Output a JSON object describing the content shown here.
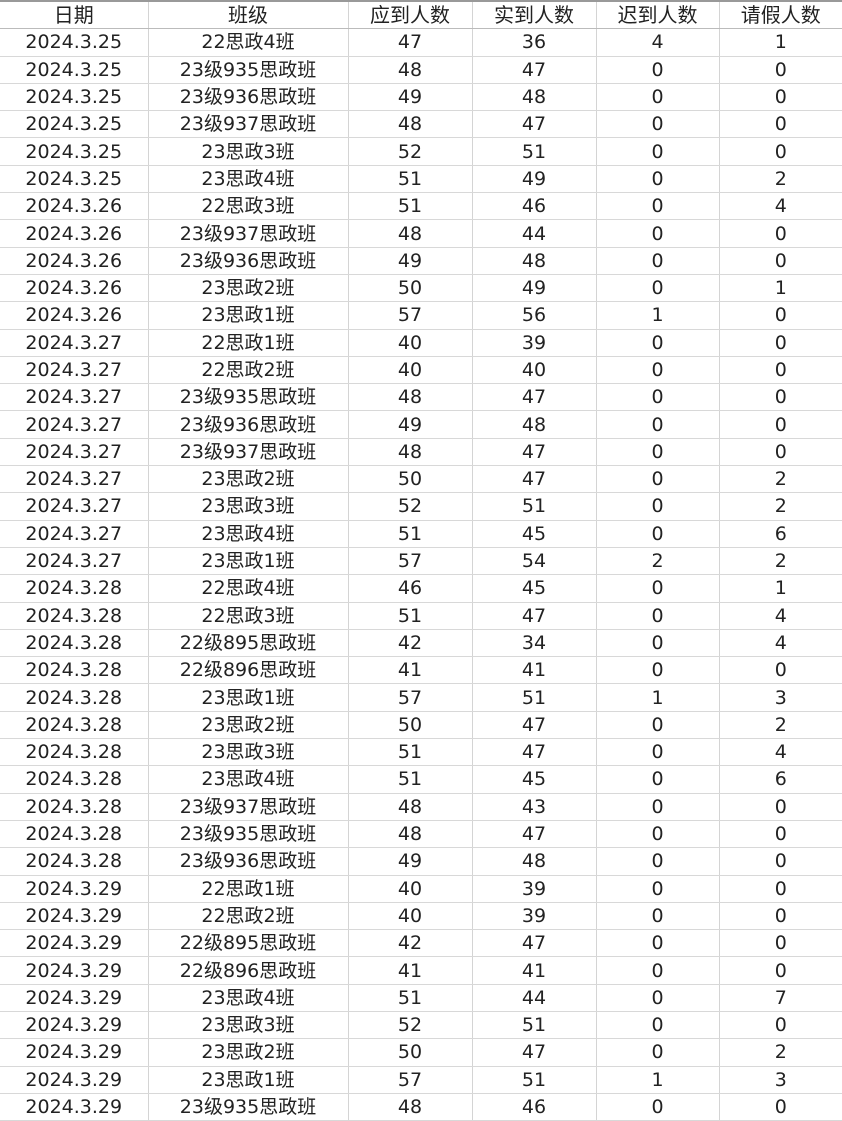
{
  "table": {
    "headers": [
      "日期",
      "班级",
      "应到人数",
      "实到人数",
      "迟到人数",
      "请假人数"
    ],
    "rows": [
      [
        "2024.3.25",
        "22思政4班",
        "47",
        "36",
        "4",
        "1"
      ],
      [
        "2024.3.25",
        "23级935思政班",
        "48",
        "47",
        "0",
        "0"
      ],
      [
        "2024.3.25",
        "23级936思政班",
        "49",
        "48",
        "0",
        "0"
      ],
      [
        "2024.3.25",
        "23级937思政班",
        "48",
        "47",
        "0",
        "0"
      ],
      [
        "2024.3.25",
        "23思政3班",
        "52",
        "51",
        "0",
        "0"
      ],
      [
        "2024.3.25",
        "23思政4班",
        "51",
        "49",
        "0",
        "2"
      ],
      [
        "2024.3.26",
        "22思政3班",
        "51",
        "46",
        "0",
        "4"
      ],
      [
        "2024.3.26",
        "23级937思政班",
        "48",
        "44",
        "0",
        "0"
      ],
      [
        "2024.3.26",
        "23级936思政班",
        "49",
        "48",
        "0",
        "0"
      ],
      [
        "2024.3.26",
        "23思政2班",
        "50",
        "49",
        "0",
        "1"
      ],
      [
        "2024.3.26",
        "23思政1班",
        "57",
        "56",
        "1",
        "0"
      ],
      [
        "2024.3.27",
        "22思政1班",
        "40",
        "39",
        "0",
        "0"
      ],
      [
        "2024.3.27",
        "22思政2班",
        "40",
        "40",
        "0",
        "0"
      ],
      [
        "2024.3.27",
        "23级935思政班",
        "48",
        "47",
        "0",
        "0"
      ],
      [
        "2024.3.27",
        "23级936思政班",
        "49",
        "48",
        "0",
        "0"
      ],
      [
        "2024.3.27",
        "23级937思政班",
        "48",
        "47",
        "0",
        "0"
      ],
      [
        "2024.3.27",
        "23思政2班",
        "50",
        "47",
        "0",
        "2"
      ],
      [
        "2024.3.27",
        "23思政3班",
        "52",
        "51",
        "0",
        "2"
      ],
      [
        "2024.3.27",
        "23思政4班",
        "51",
        "45",
        "0",
        "6"
      ],
      [
        "2024.3.27",
        "23思政1班",
        "57",
        "54",
        "2",
        "2"
      ],
      [
        "2024.3.28",
        "22思政4班",
        "46",
        "45",
        "0",
        "1"
      ],
      [
        "2024.3.28",
        "22思政3班",
        "51",
        "47",
        "0",
        "4"
      ],
      [
        "2024.3.28",
        "22级895思政班",
        "42",
        "34",
        "0",
        "4"
      ],
      [
        "2024.3.28",
        "22级896思政班",
        "41",
        "41",
        "0",
        "0"
      ],
      [
        "2024.3.28",
        "23思政1班",
        "57",
        "51",
        "1",
        "3"
      ],
      [
        "2024.3.28",
        "23思政2班",
        "50",
        "47",
        "0",
        "2"
      ],
      [
        "2024.3.28",
        "23思政3班",
        "51",
        "47",
        "0",
        "4"
      ],
      [
        "2024.3.28",
        "23思政4班",
        "51",
        "45",
        "0",
        "6"
      ],
      [
        "2024.3.28",
        "23级937思政班",
        "48",
        "43",
        "0",
        "0"
      ],
      [
        "2024.3.28",
        "23级935思政班",
        "48",
        "47",
        "0",
        "0"
      ],
      [
        "2024.3.28",
        "23级936思政班",
        "49",
        "48",
        "0",
        "0"
      ],
      [
        "2024.3.29",
        "22思政1班",
        "40",
        "39",
        "0",
        "0"
      ],
      [
        "2024.3.29",
        "22思政2班",
        "40",
        "39",
        "0",
        "0"
      ],
      [
        "2024.3.29",
        "22级895思政班",
        "42",
        "47",
        "0",
        "0"
      ],
      [
        "2024.3.29",
        "22级896思政班",
        "41",
        "41",
        "0",
        "0"
      ],
      [
        "2024.3.29",
        "23思政4班",
        "51",
        "44",
        "0",
        "7"
      ],
      [
        "2024.3.29",
        "23思政3班",
        "52",
        "51",
        "0",
        "0"
      ],
      [
        "2024.3.29",
        "23思政2班",
        "50",
        "47",
        "0",
        "2"
      ],
      [
        "2024.3.29",
        "23思政1班",
        "57",
        "51",
        "1",
        "3"
      ],
      [
        "2024.3.29",
        "23级935思政班",
        "48",
        "46",
        "0",
        "0"
      ]
    ]
  }
}
